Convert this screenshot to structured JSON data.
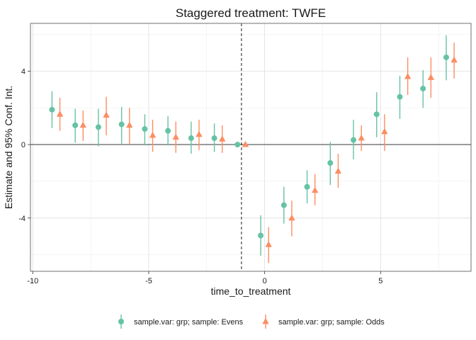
{
  "chart_data": {
    "type": "scatter",
    "title": "Staggered treatment: TWFE",
    "xlabel": "time_to_treatment",
    "ylabel": "Estimate and 95% Conf. Int.",
    "xlim": [
      -10.1,
      8.9
    ],
    "ylim": [
      -6.9,
      6.6
    ],
    "x_ticks": [
      -10,
      -5,
      0,
      5
    ],
    "x_tick_labels": [
      "-10",
      "-5",
      "0",
      "5"
    ],
    "y_ticks": [
      -4,
      0,
      4
    ],
    "y_tick_labels": [
      "-4",
      "0",
      "4"
    ],
    "reference_vline": -1,
    "reference_hline": 0,
    "grid": true,
    "legend_position": "bottom",
    "series": [
      {
        "name": "sample.var: grp; sample: Evens",
        "color": "#66c2a5",
        "marker": "circle",
        "x": [
          -9,
          -8,
          -7,
          -6,
          -5,
          -4,
          -3,
          -2,
          -1,
          0,
          1,
          2,
          3,
          4,
          5,
          6,
          7,
          8
        ],
        "y": [
          1.9,
          1.05,
          0.95,
          1.1,
          0.85,
          0.75,
          0.35,
          0.35,
          0.0,
          -4.95,
          -3.3,
          -2.3,
          -1.0,
          0.25,
          1.65,
          2.6,
          3.05,
          4.75
        ],
        "ci_low": [
          0.9,
          0.1,
          -0.1,
          0.05,
          -0.05,
          -0.05,
          -0.5,
          -0.4,
          0.0,
          -6.05,
          -4.3,
          -3.2,
          -2.2,
          -0.8,
          0.4,
          1.4,
          2.0,
          3.5
        ],
        "ci_high": [
          2.9,
          1.95,
          1.95,
          2.05,
          1.65,
          1.55,
          1.25,
          1.15,
          0.0,
          -3.85,
          -2.3,
          -1.4,
          0.15,
          1.35,
          2.85,
          3.75,
          4.05,
          5.95
        ]
      },
      {
        "name": "sample.var: grp; sample: Odds",
        "color": "#fc8d62",
        "marker": "triangle",
        "x": [
          -9,
          -8,
          -7,
          -6,
          -5,
          -4,
          -3,
          -2,
          -1,
          0,
          1,
          2,
          3,
          4,
          5,
          6,
          7,
          8
        ],
        "y": [
          1.65,
          1.05,
          1.6,
          1.05,
          0.5,
          0.4,
          0.55,
          0.3,
          0.0,
          -5.45,
          -4.0,
          -2.5,
          -1.45,
          0.35,
          0.7,
          3.7,
          3.65,
          4.6
        ],
        "ci_low": [
          0.75,
          0.2,
          0.5,
          0.05,
          -0.4,
          -0.45,
          -0.3,
          -0.45,
          0.0,
          -6.45,
          -5.0,
          -3.3,
          -2.35,
          -0.35,
          -0.35,
          2.7,
          2.55,
          3.6
        ],
        "ci_high": [
          2.55,
          1.85,
          2.6,
          2.0,
          1.35,
          1.25,
          1.35,
          1.05,
          0.0,
          -4.5,
          -3.05,
          -1.6,
          -0.5,
          1.05,
          1.65,
          4.75,
          4.75,
          5.55
        ]
      }
    ]
  }
}
